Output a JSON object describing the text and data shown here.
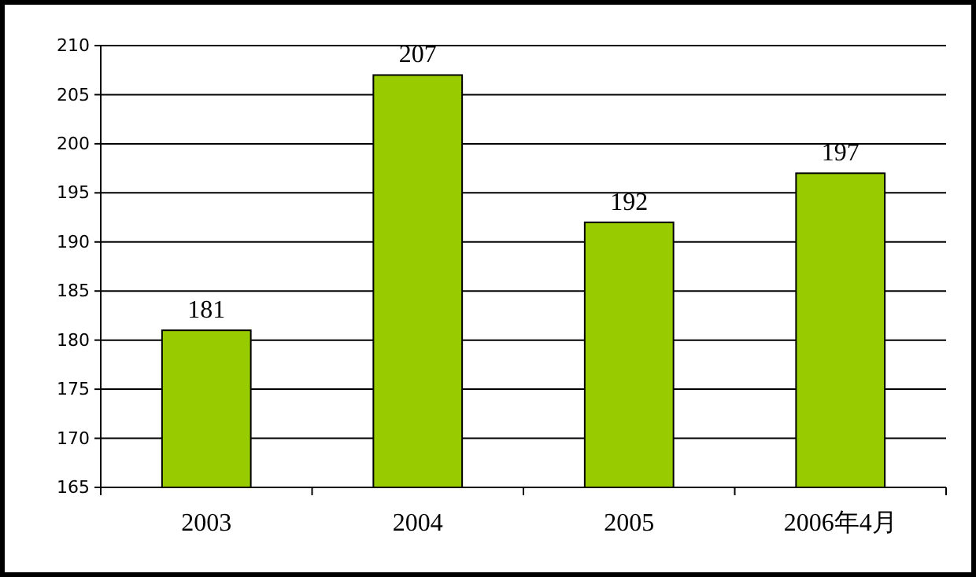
{
  "chart_data": {
    "type": "bar",
    "categories": [
      "2003",
      "2004",
      "2005",
      "2006年4月"
    ],
    "values": [
      181,
      207,
      192,
      197
    ],
    "color": "#99cc00",
    "ylim": [
      165,
      210
    ],
    "yticks": [
      165,
      170,
      175,
      180,
      185,
      190,
      195,
      200,
      205,
      210
    ],
    "grid": "y",
    "data_labels": true
  }
}
